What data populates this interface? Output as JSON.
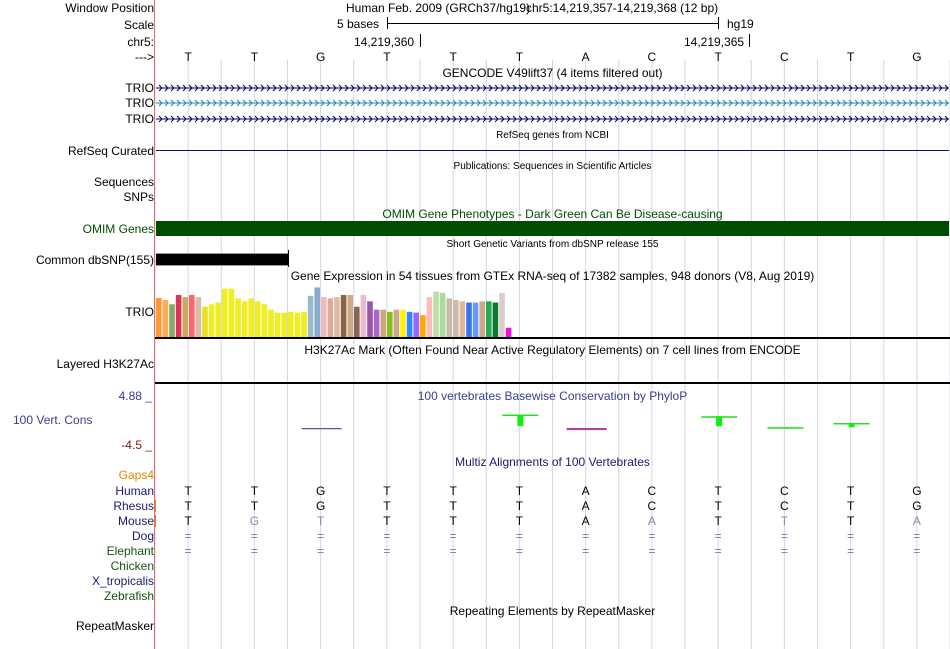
{
  "header": {
    "window_position_label": "Window Position",
    "scale_label": "Scale",
    "chrom_label": "chr5:",
    "strand_label": "--->",
    "assembly": "Human Feb. 2009 (GRCh37/hg19)",
    "position": "chr5:14,219,357-14,219,368 (12 bp)",
    "scale_text": "5 bases",
    "scale_db": "hg19",
    "coord_left": "14,219,360",
    "coord_right": "14,219,365",
    "sequence": [
      "T",
      "T",
      "G",
      "T",
      "T",
      "T",
      "A",
      "C",
      "T",
      "C",
      "T",
      "G"
    ]
  },
  "tracks": {
    "gencode": {
      "title": "GENCODE V49lift37 (4 items filtered out)",
      "items": [
        {
          "label": "TRIO",
          "color": "#000066"
        },
        {
          "label": "TRIO",
          "color": "#1a8cb0"
        },
        {
          "label": "TRIO",
          "color": "#000066"
        }
      ]
    },
    "refseq": {
      "title": "RefSeq genes from NCBI",
      "label": "RefSeq Curated",
      "color": "#0c0c78"
    },
    "publications": {
      "title": "Publications: Sequences in Scientific Articles",
      "labels": [
        "Sequences",
        "SNPs"
      ]
    },
    "omim": {
      "title": "OMIM Gene Phenotypes - Dark Green Can Be Disease-causing",
      "label": "OMIM Genes",
      "color": "#004d00"
    },
    "dbsnp": {
      "title": "Short Genetic Variants from dbSNP release 155",
      "label": "Common dbSNP(155)"
    },
    "gtex": {
      "title": "Gene Expression in 54 tissues from GTEx RNA-seq of 17382 samples, 948 donors (V8, Aug 2019)",
      "label": "TRIO",
      "levels": [
        0.93,
        0.88,
        0.78,
        1.0,
        0.95,
        1.0,
        0.95,
        0.72,
        0.78,
        0.82,
        1.15,
        1.15,
        0.92,
        0.85,
        0.92,
        0.85,
        0.78,
        0.65,
        0.58,
        0.58,
        0.6,
        0.58,
        0.6,
        0.98,
        1.18,
        0.95,
        0.92,
        0.95,
        1.0,
        1.0,
        0.72,
        1.0,
        0.85,
        0.65,
        0.65,
        0.6,
        0.65,
        0.65,
        0.6,
        0.58,
        0.52,
        0.95,
        1.08,
        1.05,
        0.92,
        0.88,
        0.85,
        0.82,
        0.82,
        0.85,
        0.85,
        0.82,
        1.05,
        0.22
      ],
      "colors": [
        "#ff9933",
        "#ffaa55",
        "#88aa66",
        "#dd3355",
        "#ccaa66",
        "#ff6666",
        "#ddbbaa",
        "#e8e022",
        "#eeee22",
        "#eeee22",
        "#eeee22",
        "#eeee22",
        "#eeee22",
        "#eeee22",
        "#eeee22",
        "#eeee22",
        "#eeee22",
        "#eeee22",
        "#eeee22",
        "#eeee22",
        "#eeee22",
        "#eeee22",
        "#eeee22",
        "#99bbcc",
        "#88aacc",
        "#eebbbb",
        "#ddaa99",
        "#ddbbaa",
        "#886644",
        "#ccaa88",
        "#886655",
        "#eebbcc",
        "#9955aa",
        "#aa66cc",
        "#ccaa77",
        "#88bb22",
        "#ccaa88",
        "#ffee11",
        "#3388ff",
        "#9966ff",
        "#ffaa00",
        "#ffbbbb",
        "#bbddaa",
        "#aadd99",
        "#ccbbaa",
        "#ccbbaa",
        "#ddbb99",
        "#3377ee",
        "#6699ff",
        "#ccaa88",
        "#22aa55",
        "#117733",
        "#ddcccc",
        "#ee11dd"
      ]
    },
    "h3k27ac": {
      "title": "H3K27Ac Mark (Often Found Near Active Regulatory Elements) on 7 cell lines from ENCODE",
      "label": "Layered H3K27Ac"
    },
    "conservation": {
      "title": "100 vertebrates Basewise Conservation by PhyloP",
      "label": "100 Vert. Cons",
      "max_label": "4.88 _",
      "min_label": "-4.5 _",
      "scores": [
        0,
        0,
        -0.3,
        0,
        0,
        3.2,
        -0.5,
        0,
        2.8,
        0.2,
        1.2,
        0
      ]
    },
    "multiz": {
      "title": "Multiz Alignments of 100 Vertebrates",
      "gaps_label": "Gaps4",
      "species": [
        {
          "name": "Human",
          "color": "#1a1a6e",
          "bases": [
            "T",
            "T",
            "G",
            "T",
            "T",
            "T",
            "A",
            "C",
            "T",
            "C",
            "T",
            "G"
          ]
        },
        {
          "name": "Rhesus",
          "color": "#1a1a6e",
          "bases": [
            "T",
            "T",
            "G",
            "T",
            "T",
            "T",
            "A",
            "C",
            "T",
            "C",
            "T",
            "G"
          ]
        },
        {
          "name": "Mouse",
          "color": "#1a1a6e",
          "bases": [
            "T",
            "G",
            "T",
            "T",
            "T",
            "T",
            "A",
            "A",
            "T",
            "T",
            "T",
            "A"
          ],
          "light": [
            false,
            true,
            true,
            false,
            false,
            false,
            false,
            true,
            false,
            true,
            false,
            true
          ]
        },
        {
          "name": "Dog",
          "color": "#1a1a6e",
          "bases": [
            "=",
            "=",
            "=",
            "=",
            "=",
            "=",
            "=",
            "=",
            "=",
            "=",
            "=",
            "="
          ]
        },
        {
          "name": "Elephant",
          "color": "#115511",
          "bases": [
            "=",
            "=",
            "=",
            "=",
            "=",
            "=",
            "=",
            "=",
            "=",
            "=",
            "=",
            "="
          ]
        },
        {
          "name": "Chicken",
          "color": "#115511",
          "bases": []
        },
        {
          "name": "X_tropicalis",
          "color": "#1a1a6e",
          "bases": []
        },
        {
          "name": "Zebrafish",
          "color": "#115511",
          "bases": []
        }
      ]
    },
    "repeatmasker": {
      "title": "Repeating Elements by RepeatMasker",
      "label": "RepeatMasker"
    }
  }
}
